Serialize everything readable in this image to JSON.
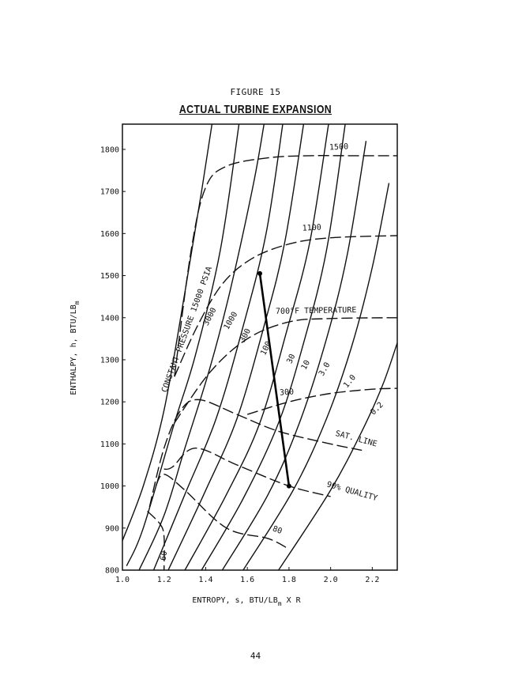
{
  "figure": {
    "label": "FIGURE 15",
    "title": "ACTUAL TURBINE EXPANSION"
  },
  "page_number": "44",
  "chart_data": {
    "type": "line",
    "title": "ACTUAL TURBINE EXPANSION",
    "xlabel": "ENTROPY, s, BTU/LB",
    "xlabel_sub": "m",
    "xlabel_suffix": " X R",
    "ylabel": "ENTHALPY, h, BTU/LB",
    "ylabel_sub": "m",
    "xlim": [
      1.0,
      2.32
    ],
    "ylim": [
      800,
      1860
    ],
    "x_ticks": [
      1.0,
      1.2,
      1.4,
      1.6,
      1.8,
      2.0,
      2.2
    ],
    "x_tick_labels": [
      "1.0",
      "1.2",
      "1.4",
      "1.6",
      "1.8",
      "2.0",
      "2.2"
    ],
    "y_ticks": [
      800,
      900,
      1000,
      1100,
      1200,
      1300,
      1400,
      1500,
      1600,
      1700,
      1800
    ],
    "y_tick_labels": [
      "800",
      "900",
      "1000",
      "1100",
      "1200",
      "1300",
      "1400",
      "1500",
      "1600",
      "1700",
      "1800"
    ],
    "grid": false,
    "pressure_lines": [
      {
        "name": "15000",
        "points": [
          [
            1.0,
            870
          ],
          [
            1.1,
            1000
          ],
          [
            1.2,
            1180
          ],
          [
            1.3,
            1460
          ],
          [
            1.38,
            1700
          ],
          [
            1.43,
            1860
          ]
        ]
      },
      {
        "name": "3000",
        "points": [
          [
            1.02,
            810
          ],
          [
            1.1,
            900
          ],
          [
            1.25,
            1150
          ],
          [
            1.35,
            1310
          ],
          [
            1.47,
            1560
          ],
          [
            1.56,
            1860
          ]
        ]
      },
      {
        "name": "1000",
        "points": [
          [
            1.08,
            800
          ],
          [
            1.2,
            930
          ],
          [
            1.3,
            1090
          ],
          [
            1.42,
            1280
          ],
          [
            1.52,
            1470
          ],
          [
            1.63,
            1720
          ],
          [
            1.68,
            1860
          ]
        ]
      },
      {
        "name": "300",
        "points": [
          [
            1.15,
            800
          ],
          [
            1.3,
            980
          ],
          [
            1.45,
            1160
          ],
          [
            1.58,
            1380
          ],
          [
            1.69,
            1600
          ],
          [
            1.77,
            1860
          ]
        ]
      },
      {
        "name": "100",
        "points": [
          [
            1.22,
            800
          ],
          [
            1.4,
            990
          ],
          [
            1.55,
            1160
          ],
          [
            1.68,
            1380
          ],
          [
            1.78,
            1580
          ],
          [
            1.87,
            1860
          ]
        ]
      },
      {
        "name": "30",
        "points": [
          [
            1.3,
            800
          ],
          [
            1.5,
            980
          ],
          [
            1.66,
            1150
          ],
          [
            1.79,
            1370
          ],
          [
            1.9,
            1580
          ],
          [
            1.99,
            1860
          ]
        ]
      },
      {
        "name": "10",
        "points": [
          [
            1.38,
            800
          ],
          [
            1.58,
            970
          ],
          [
            1.75,
            1150
          ],
          [
            1.87,
            1340
          ],
          [
            1.98,
            1560
          ],
          [
            2.07,
            1860
          ]
        ]
      },
      {
        "name": "3.0",
        "points": [
          [
            1.48,
            800
          ],
          [
            1.7,
            980
          ],
          [
            1.85,
            1150
          ],
          [
            1.98,
            1350
          ],
          [
            2.08,
            1550
          ],
          [
            2.17,
            1820
          ]
        ]
      },
      {
        "name": "1.0",
        "points": [
          [
            1.58,
            800
          ],
          [
            1.82,
            990
          ],
          [
            1.98,
            1160
          ],
          [
            2.1,
            1330
          ],
          [
            2.2,
            1520
          ],
          [
            2.28,
            1720
          ]
        ]
      },
      {
        "name": "0.2",
        "points": [
          [
            1.75,
            800
          ],
          [
            2.0,
            990
          ],
          [
            2.15,
            1130
          ],
          [
            2.25,
            1240
          ],
          [
            2.32,
            1340
          ]
        ]
      }
    ],
    "pressure_labels": [
      {
        "text": "CONSTANT PRESSURE 15000 PSIA",
        "x": 1.32,
        "y": 1370
      },
      {
        "text": "3000",
        "x": 1.43,
        "y": 1400
      },
      {
        "text": "1000",
        "x": 1.53,
        "y": 1390
      },
      {
        "text": "300",
        "x": 1.6,
        "y": 1355
      },
      {
        "text": "100",
        "x": 1.7,
        "y": 1325
      },
      {
        "text": "30",
        "x": 1.82,
        "y": 1300
      },
      {
        "text": "10",
        "x": 1.89,
        "y": 1285
      },
      {
        "text": "3.0",
        "x": 1.98,
        "y": 1275
      },
      {
        "text": "1.0",
        "x": 2.1,
        "y": 1245
      },
      {
        "text": "0.2",
        "x": 2.23,
        "y": 1180
      }
    ],
    "temperature_lines": [
      {
        "name": "1500",
        "label": "1500",
        "points": [
          [
            1.25,
            1260
          ],
          [
            1.33,
            1560
          ],
          [
            1.4,
            1710
          ],
          [
            1.5,
            1760
          ],
          [
            1.7,
            1780
          ],
          [
            1.9,
            1785
          ],
          [
            2.1,
            1785
          ],
          [
            2.32,
            1785
          ]
        ]
      },
      {
        "name": "1100",
        "label": "1100",
        "points": [
          [
            1.25,
            1260
          ],
          [
            1.36,
            1380
          ],
          [
            1.48,
            1480
          ],
          [
            1.62,
            1540
          ],
          [
            1.8,
            1575
          ],
          [
            2.0,
            1590
          ],
          [
            2.32,
            1595
          ]
        ]
      },
      {
        "name": "700",
        "label": "700°F TEMPERATURE",
        "points": [
          [
            1.25,
            1150
          ],
          [
            1.42,
            1270
          ],
          [
            1.6,
            1350
          ],
          [
            1.8,
            1390
          ],
          [
            2.0,
            1398
          ],
          [
            2.32,
            1400
          ]
        ]
      },
      {
        "name": "300",
        "label": "300",
        "points": [
          [
            1.6,
            1170
          ],
          [
            1.8,
            1200
          ],
          [
            2.0,
            1220
          ],
          [
            2.2,
            1230
          ],
          [
            2.32,
            1232
          ]
        ]
      }
    ],
    "saturation_line": {
      "label": "SAT. LINE",
      "points": [
        [
          1.13,
          950
        ],
        [
          1.2,
          1090
        ],
        [
          1.28,
          1180
        ],
        [
          1.37,
          1205
        ],
        [
          1.55,
          1170
        ],
        [
          1.75,
          1130
        ],
        [
          2.0,
          1100
        ],
        [
          2.15,
          1085
        ]
      ]
    },
    "quality_lines": [
      {
        "name": "90",
        "label": "90% QUALITY",
        "points": [
          [
            1.2,
            1040
          ],
          [
            1.24,
            1045
          ],
          [
            1.35,
            1090
          ],
          [
            1.55,
            1050
          ],
          [
            1.8,
            1000
          ],
          [
            2.0,
            975
          ]
        ]
      },
      {
        "name": "80",
        "label": "80",
        "points": [
          [
            1.16,
            1000
          ],
          [
            1.2,
            1028
          ],
          [
            1.3,
            990
          ],
          [
            1.5,
            900
          ],
          [
            1.7,
            875
          ],
          [
            1.8,
            850
          ]
        ]
      },
      {
        "name": "60",
        "label": "60",
        "points": [
          [
            1.12,
            940
          ],
          [
            1.18,
            910
          ],
          [
            1.2,
            880
          ],
          [
            1.2,
            800
          ]
        ]
      }
    ],
    "expansion_line": {
      "points": [
        [
          1.66,
          1505
        ],
        [
          1.8,
          1000
        ]
      ]
    }
  }
}
